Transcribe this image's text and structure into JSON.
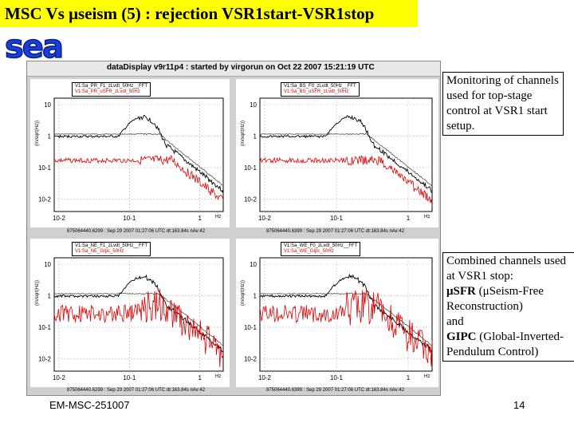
{
  "slide": {
    "title": "MSC Vs μseism (5) : rejection VSR1start-VSR1stop",
    "logo_text": "sea",
    "footer_left": "EM-MSC-251007",
    "page_number": "14"
  },
  "screenshot": {
    "window_title": "dataDisplay v9r11p4 : started by virgorun on Oct 22 2007 15:21:19 UTC",
    "panels": [
      {
        "legend_black": "V1:Sa_PR_F1_zLvdt_50Hz__FFT",
        "legend_red": "V1:Sa_PR_uSFR_zLvdt_50Hz",
        "footer": "",
        "xunit": "Hz",
        "ytick_labels": [
          "10",
          "1",
          "10-1",
          "10-2"
        ],
        "xtick_labels": [
          "10-2",
          "10-1",
          "1"
        ]
      },
      {
        "legend_black": "V1:Sa_BS_F0_zLvdt_50Hz__FFT",
        "legend_red": "V1:Sa_BS_uSFR_zLvdt_50Hz",
        "footer": "",
        "xunit": "Hz",
        "ytick_labels": [
          "10",
          "1",
          "10-1",
          "10-2"
        ],
        "xtick_labels": [
          "10-2",
          "10-1",
          "1"
        ]
      },
      {
        "legend_black": "V1:Sa_NE_F1_zLvdt_50Hz__FFT",
        "legend_red": "V1:Sa_NE_GIpc_50Hz",
        "footer": "875064440.6299 : Sep 29 2007 01:27:06 UTC dt:163.84s nAv:42",
        "xunit": "Hz",
        "ytick_labels": [
          "10",
          "1",
          "10-1",
          "10-2"
        ],
        "xtick_labels": [
          "10-2",
          "10-1",
          "1"
        ]
      },
      {
        "legend_black": "V1:Sa_WE_F0_zLvdt_50Hz__FFT",
        "legend_red": "V1:Sa_WE_GIpc_50Hz",
        "footer": "875064440.6399 : Sep 29 2007 01:27:06 UTC dt:163.84s nAv:42",
        "xunit": "Hz",
        "ytick_labels": [
          "10",
          "1",
          "10-1",
          "10-2"
        ],
        "xtick_labels": [
          "10-2",
          "10-1",
          "1"
        ]
      }
    ],
    "top_footers": [
      "875064440.6299 : Sep 29 2007 01:27:06 UTC dt:163.84s nAv:42",
      "875064440.6399 : Sep 29 2007 01:27:06 UTC dt:163.84s nAv:42"
    ],
    "yaxis_label": "(m/sqrt(Hz))"
  },
  "notes": {
    "note1": "Monitoring of channels used for top-stage control at VSR1 start setup.",
    "note2_intro": "Combined channels used at VSR1 stop:",
    "usfr_abbr": "μSFR",
    "usfr_desc": " (μSeism-Free Reconstruction)",
    "and_word": "and",
    "gipc_abbr": "GIPC",
    "gipc_desc": " (Global-Inverted-Pendulum Control)"
  },
  "colors": {
    "title_bg": "#ffff00",
    "logo_blue": "#1a3fd6",
    "trace_black": "#000000",
    "trace_red": "#e00000",
    "trace_gray": "#555555"
  }
}
